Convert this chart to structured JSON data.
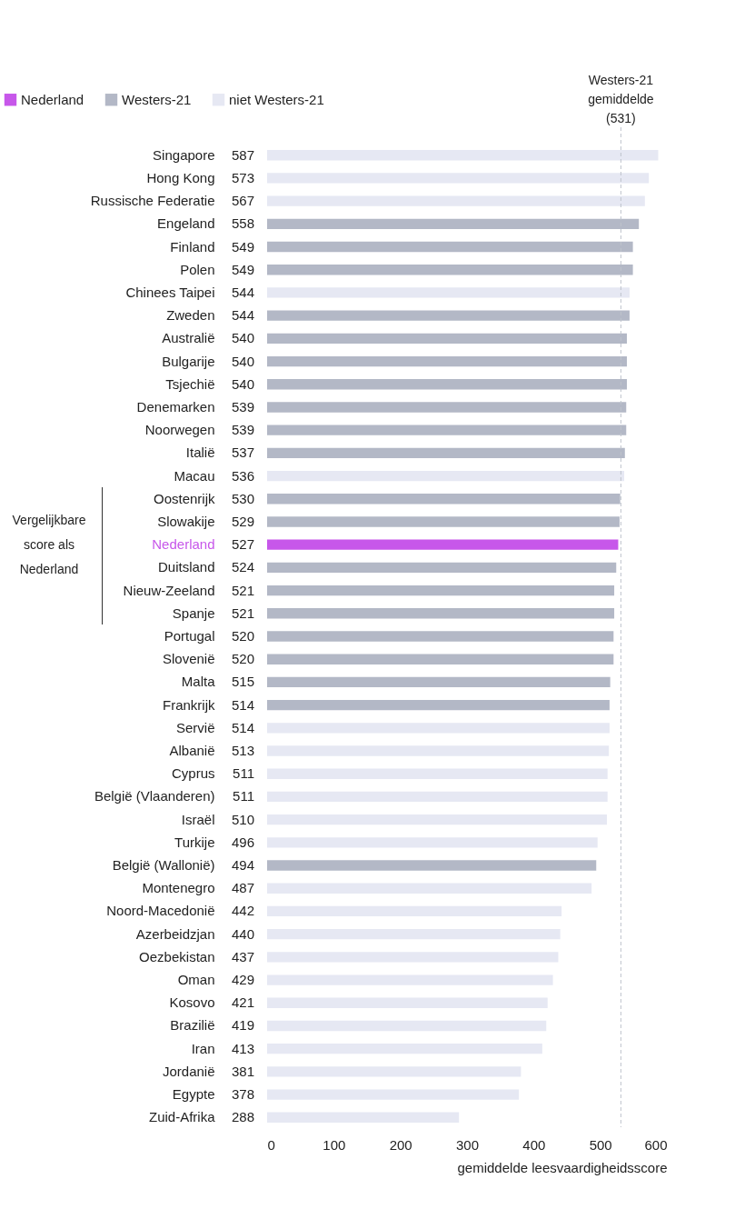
{
  "chart_data": {
    "type": "bar",
    "orientation": "horizontal",
    "categories": [
      "Singapore",
      "Hong Kong",
      "Russische Federatie",
      "Engeland",
      "Finland",
      "Polen",
      "Chinees Taipei",
      "Zweden",
      "Australië",
      "Bulgarije",
      "Tsjechië",
      "Denemarken",
      "Noorwegen",
      "Italië",
      "Macau",
      "Oostenrijk",
      "Slowakije",
      "Nederland",
      "Duitsland",
      "Nieuw-Zeeland",
      "Spanje",
      "Portugal",
      "Slovenië",
      "Malta",
      "Frankrijk",
      "Servië",
      "Albanië",
      "Cyprus",
      "België (Vlaanderen)",
      "Israël",
      "Turkije",
      "België (Wallonië)",
      "Montenegro",
      "Noord-Macedonië",
      "Azerbeidzjan",
      "Oezbekistan",
      "Oman",
      "Kosovo",
      "Brazilië",
      "Iran",
      "Jordanië",
      "Egypte",
      "Zuid-Afrika"
    ],
    "series": [
      {
        "name": "Nederland",
        "color": "#c757ea",
        "values": [
          null,
          null,
          null,
          null,
          null,
          null,
          null,
          null,
          null,
          null,
          null,
          null,
          null,
          null,
          null,
          null,
          null,
          527,
          null,
          null,
          null,
          null,
          null,
          null,
          null,
          null,
          null,
          null,
          null,
          null,
          null,
          null,
          null,
          null,
          null,
          null,
          null,
          null,
          null,
          null,
          null,
          null,
          null
        ]
      },
      {
        "name": "Westers-21",
        "color": "#b3b8c6",
        "values": [
          null,
          null,
          null,
          558,
          549,
          549,
          null,
          544,
          540,
          540,
          540,
          539,
          539,
          537,
          null,
          530,
          529,
          null,
          524,
          521,
          521,
          520,
          520,
          515,
          514,
          null,
          null,
          null,
          null,
          null,
          null,
          494,
          null,
          null,
          null,
          null,
          null,
          null,
          null,
          null,
          null,
          null,
          null
        ]
      },
      {
        "name": "niet Westers-21",
        "color": "#e6e8f3",
        "values": [
          587,
          573,
          567,
          null,
          null,
          null,
          544,
          null,
          null,
          null,
          null,
          null,
          null,
          null,
          536,
          null,
          null,
          null,
          null,
          null,
          null,
          null,
          null,
          null,
          null,
          514,
          513,
          511,
          511,
          510,
          496,
          null,
          487,
          442,
          440,
          437,
          429,
          421,
          419,
          413,
          381,
          378,
          288
        ]
      }
    ],
    "data_labels": true,
    "xlabel": "gemiddelde leesvaardigheidsscore",
    "xlim": [
      0,
      600
    ],
    "xticks": [
      0,
      100,
      200,
      300,
      400,
      500,
      600
    ],
    "legend": "top left",
    "ref_lines": [
      {
        "axis": "x",
        "value": 531,
        "label": "Westers-21 gemiddelde (531)",
        "line_style": "dashed",
        "color": "#bfc3cc"
      }
    ],
    "annotations": [
      "Vergelijkbare score als Nederland"
    ]
  }
}
